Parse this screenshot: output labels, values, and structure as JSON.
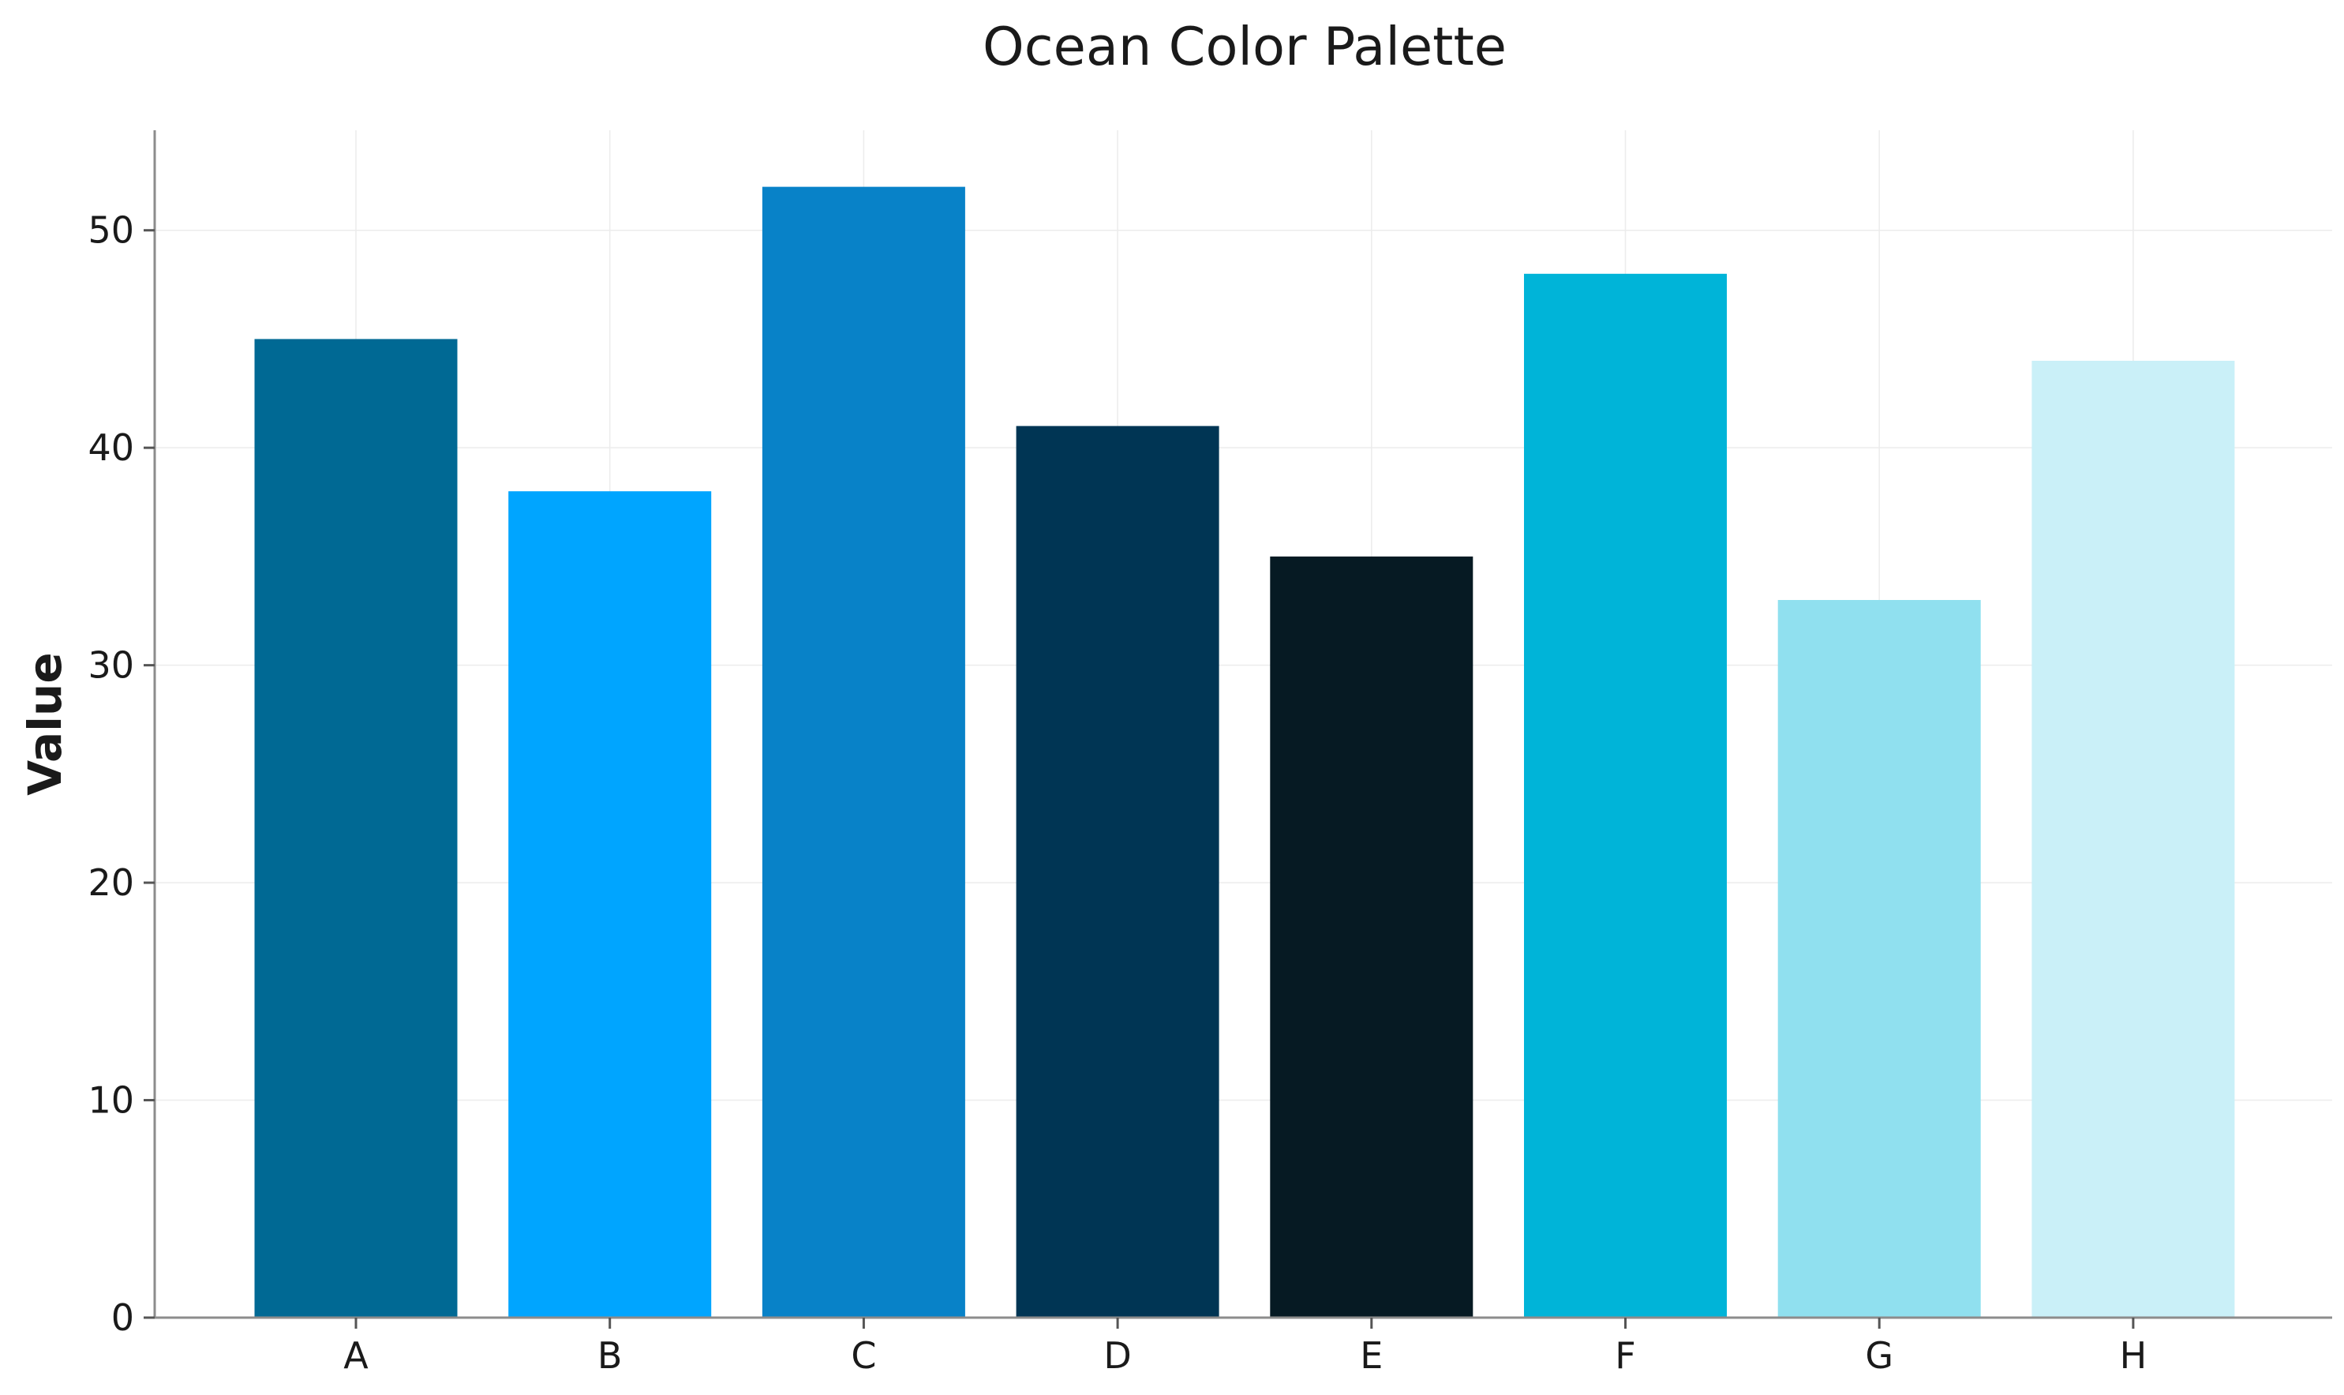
{
  "chart_data": {
    "type": "bar",
    "title": "Ocean Color Palette",
    "xlabel": "",
    "ylabel": "Value",
    "categories": [
      "A",
      "B",
      "C",
      "D",
      "E",
      "F",
      "G",
      "H"
    ],
    "values": [
      45,
      38,
      52,
      41,
      35,
      48,
      33,
      44
    ],
    "colors": [
      "#006994",
      "#00A5FF",
      "#0882C8",
      "#003554",
      "#061A23",
      "#00B4D8",
      "#90E0EF",
      "#CAF0F8"
    ],
    "ylim": [
      0,
      54.6
    ],
    "yticks": [
      0,
      10,
      20,
      30,
      40,
      50
    ],
    "grid": true,
    "legend": "none"
  }
}
